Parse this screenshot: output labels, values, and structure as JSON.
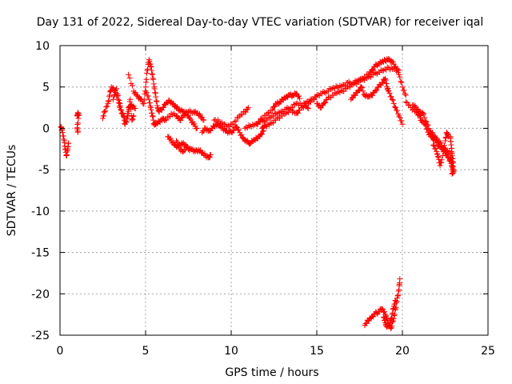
{
  "chart_data": {
    "type": "scatter",
    "title": "Day 131 of 2022, Sidereal Day-to-day VTEC variation (SDTVAR) for receiver iqal",
    "xlabel": "GPS time / hours",
    "ylabel": "SDTVAR / TECUs",
    "xlim": [
      0,
      25
    ],
    "ylim": [
      -25,
      10
    ],
    "xticks": [
      0,
      5,
      10,
      15,
      20,
      25
    ],
    "yticks": [
      -25,
      -20,
      -15,
      -10,
      -5,
      0,
      5,
      10
    ],
    "grid": true,
    "marker": "+",
    "color": "#ff0000",
    "segments": [
      [
        [
          0.05,
          0.2
        ],
        [
          0.15,
          -0.5
        ],
        [
          0.25,
          -1.5
        ],
        [
          0.3,
          -2.5
        ],
        [
          0.38,
          -3.3
        ],
        [
          0.45,
          -2.5
        ],
        [
          0.5,
          -1.8
        ]
      ],
      [
        [
          1.0,
          1.5
        ],
        [
          1.05,
          1.8
        ],
        [
          1.1,
          1.6
        ],
        [
          1.0,
          0.0
        ],
        [
          1.05,
          -0.4
        ]
      ],
      [
        [
          2.5,
          1.2
        ],
        [
          2.6,
          2.0
        ],
        [
          2.8,
          3.0
        ],
        [
          2.9,
          4.0
        ],
        [
          3.0,
          5.0
        ],
        [
          3.2,
          4.5
        ],
        [
          3.4,
          3.5
        ],
        [
          3.5,
          2.5
        ],
        [
          3.7,
          1.5
        ],
        [
          3.8,
          0.5
        ],
        [
          4.0,
          1.8
        ],
        [
          4.1,
          3.5
        ],
        [
          4.2,
          1.0
        ],
        [
          4.3,
          1.5
        ]
      ],
      [
        [
          3.1,
          3.5
        ],
        [
          3.3,
          4.8
        ],
        [
          3.5,
          3.0
        ],
        [
          3.6,
          1.8
        ],
        [
          3.9,
          0.8
        ],
        [
          4.0,
          2.5
        ],
        [
          4.2,
          2.8
        ],
        [
          4.4,
          2.4
        ]
      ],
      [
        [
          4.0,
          6.5
        ],
        [
          4.3,
          4.5
        ],
        [
          4.5,
          4.0
        ],
        [
          4.7,
          3.5
        ],
        [
          4.9,
          3.0
        ],
        [
          5.0,
          5.0
        ],
        [
          5.1,
          7.0
        ],
        [
          5.2,
          8.3
        ],
        [
          5.3,
          7.5
        ],
        [
          5.4,
          6.5
        ],
        [
          5.5,
          5.0
        ],
        [
          5.6,
          3.8
        ],
        [
          5.7,
          2.5
        ],
        [
          5.8,
          2.0
        ],
        [
          6.0,
          2.5
        ],
        [
          6.2,
          3.0
        ],
        [
          6.4,
          3.3
        ],
        [
          6.6,
          3.0
        ],
        [
          6.8,
          2.5
        ],
        [
          7.0,
          2.2
        ],
        [
          7.2,
          2.0
        ],
        [
          7.4,
          1.8
        ],
        [
          7.6,
          1.2
        ],
        [
          7.8,
          0.5
        ],
        [
          8.0,
          0.0
        ]
      ],
      [
        [
          5.0,
          4.5
        ],
        [
          5.2,
          3.5
        ],
        [
          5.3,
          2.5
        ],
        [
          5.4,
          1.5
        ],
        [
          5.5,
          0.5
        ],
        [
          5.6,
          0.5
        ],
        [
          5.8,
          0.8
        ],
        [
          6.0,
          1.2
        ],
        [
          6.2,
          1.0
        ],
        [
          6.5,
          1.8
        ],
        [
          6.8,
          1.5
        ],
        [
          7.0,
          1.0
        ],
        [
          7.2,
          1.5
        ],
        [
          7.5,
          2.0
        ],
        [
          7.8,
          2.0
        ],
        [
          8.0,
          1.8
        ],
        [
          8.2,
          1.5
        ],
        [
          8.4,
          1.0
        ]
      ],
      [
        [
          6.3,
          -1.0
        ],
        [
          6.5,
          -1.5
        ],
        [
          6.7,
          -2.0
        ],
        [
          6.9,
          -2.2
        ],
        [
          7.1,
          -1.8
        ],
        [
          7.3,
          -2.0
        ],
        [
          7.5,
          -2.5
        ],
        [
          7.7,
          -2.5
        ],
        [
          7.9,
          -2.8
        ],
        [
          8.1,
          -2.6
        ],
        [
          8.3,
          -3.0
        ],
        [
          8.5,
          -3.3
        ],
        [
          8.7,
          -3.5
        ],
        [
          8.8,
          -3.2
        ]
      ],
      [
        [
          6.8,
          -1.5
        ],
        [
          7.0,
          -2.5
        ],
        [
          7.2,
          -2.8
        ],
        [
          7.4,
          -2.2
        ]
      ],
      [
        [
          8.3,
          -0.5
        ],
        [
          8.5,
          0.0
        ],
        [
          8.7,
          -0.3
        ],
        [
          8.9,
          0.0
        ],
        [
          9.1,
          0.5
        ],
        [
          9.3,
          0.3
        ],
        [
          9.5,
          0.0
        ],
        [
          9.7,
          -0.3
        ],
        [
          9.9,
          -0.5
        ],
        [
          10.1,
          -0.3
        ],
        [
          10.3,
          0.2
        ],
        [
          10.5,
          -0.5
        ],
        [
          10.7,
          -1.2
        ],
        [
          10.9,
          -1.6
        ],
        [
          11.1,
          -1.8
        ],
        [
          11.3,
          -1.5
        ],
        [
          11.5,
          -1.2
        ],
        [
          11.7,
          -0.8
        ],
        [
          11.9,
          -0.3
        ]
      ],
      [
        [
          9.0,
          1.0
        ],
        [
          9.3,
          0.8
        ],
        [
          9.6,
          0.5
        ],
        [
          9.9,
          0.2
        ],
        [
          10.2,
          0.8
        ],
        [
          10.5,
          1.5
        ],
        [
          10.8,
          2.0
        ],
        [
          11.0,
          2.5
        ]
      ],
      [
        [
          10.8,
          0.0
        ],
        [
          11.1,
          0.3
        ],
        [
          11.4,
          0.5
        ],
        [
          11.7,
          0.8
        ],
        [
          12.0,
          1.0
        ],
        [
          12.3,
          1.3
        ],
        [
          12.6,
          1.8
        ],
        [
          12.9,
          2.0
        ],
        [
          13.2,
          2.3
        ],
        [
          13.5,
          2.5
        ],
        [
          13.8,
          3.0
        ],
        [
          14.1,
          2.8
        ],
        [
          14.4,
          3.2
        ],
        [
          14.7,
          3.5
        ]
      ],
      [
        [
          11.8,
          0.0
        ],
        [
          12.0,
          0.3
        ],
        [
          12.3,
          0.6
        ],
        [
          12.6,
          1.0
        ],
        [
          12.9,
          1.5
        ],
        [
          13.2,
          1.8
        ],
        [
          13.5,
          2.2
        ],
        [
          13.8,
          1.8
        ],
        [
          14.0,
          2.2
        ],
        [
          14.3,
          2.8
        ],
        [
          14.5,
          2.4
        ]
      ],
      [
        [
          11.5,
          0.5
        ],
        [
          11.8,
          1.2
        ],
        [
          12.1,
          1.8
        ],
        [
          12.4,
          2.2
        ],
        [
          12.6,
          3.0
        ],
        [
          12.8,
          3.0
        ],
        [
          13.0,
          3.5
        ],
        [
          13.2,
          3.8
        ],
        [
          13.4,
          4.0
        ],
        [
          13.6,
          4.0
        ],
        [
          13.8,
          4.2
        ],
        [
          14.0,
          3.6
        ]
      ],
      [
        [
          14.5,
          3.0
        ],
        [
          14.8,
          3.5
        ],
        [
          15.0,
          4.0
        ],
        [
          15.3,
          4.2
        ],
        [
          15.6,
          4.5
        ],
        [
          15.9,
          4.8
        ],
        [
          16.2,
          5.0
        ],
        [
          16.5,
          5.2
        ],
        [
          16.8,
          5.5
        ],
        [
          17.1,
          5.4
        ],
        [
          17.4,
          5.8
        ],
        [
          17.7,
          5.9
        ],
        [
          18.0,
          6.2
        ],
        [
          18.3,
          6.5
        ],
        [
          18.6,
          6.8
        ],
        [
          18.9,
          7.0
        ],
        [
          19.2,
          7.3
        ],
        [
          19.5,
          7.2
        ],
        [
          19.8,
          7.0
        ]
      ],
      [
        [
          15.0,
          3.0
        ],
        [
          15.2,
          2.5
        ],
        [
          15.4,
          3.0
        ],
        [
          15.6,
          3.5
        ],
        [
          15.9,
          4.0
        ],
        [
          16.2,
          4.3
        ],
        [
          16.5,
          4.5
        ],
        [
          16.8,
          5.0
        ],
        [
          17.1,
          5.3
        ],
        [
          17.4,
          5.6
        ],
        [
          17.7,
          6.0
        ],
        [
          18.0,
          6.5
        ],
        [
          18.2,
          7.0
        ],
        [
          18.4,
          7.5
        ],
        [
          18.6,
          7.8
        ],
        [
          18.8,
          8.0
        ],
        [
          19.0,
          8.2
        ],
        [
          19.2,
          8.4
        ],
        [
          19.4,
          8.0
        ],
        [
          19.6,
          7.5
        ],
        [
          19.8,
          6.5
        ],
        [
          20.0,
          5.0
        ],
        [
          20.2,
          4.0
        ]
      ],
      [
        [
          17.0,
          3.5
        ],
        [
          17.2,
          4.0
        ],
        [
          17.4,
          4.5
        ],
        [
          17.6,
          5.0
        ],
        [
          17.8,
          4.0
        ],
        [
          18.0,
          3.8
        ],
        [
          18.2,
          4.0
        ],
        [
          18.4,
          4.5
        ],
        [
          18.6,
          5.0
        ],
        [
          18.8,
          5.5
        ],
        [
          19.0,
          6.0
        ],
        [
          19.1,
          5.0
        ],
        [
          19.2,
          4.5
        ],
        [
          19.4,
          3.5
        ],
        [
          19.6,
          2.5
        ],
        [
          19.8,
          1.5
        ],
        [
          20.0,
          0.5
        ]
      ],
      [
        [
          20.2,
          3.2
        ],
        [
          20.5,
          2.5
        ],
        [
          20.8,
          2.0
        ],
        [
          21.0,
          1.5
        ],
        [
          21.1,
          1.0
        ],
        [
          21.3,
          0.5
        ],
        [
          21.5,
          -0.5
        ],
        [
          21.7,
          -1.0
        ],
        [
          21.9,
          -1.5
        ],
        [
          22.1,
          -2.0
        ],
        [
          22.3,
          -2.5
        ],
        [
          22.5,
          -3.0
        ],
        [
          22.7,
          -3.5
        ],
        [
          22.8,
          -4.0
        ],
        [
          22.9,
          -4.5
        ],
        [
          22.95,
          -5.0
        ]
      ],
      [
        [
          20.6,
          2.8
        ],
        [
          20.8,
          2.5
        ],
        [
          21.0,
          2.0
        ],
        [
          21.2,
          1.8
        ],
        [
          21.4,
          0.8
        ],
        [
          21.6,
          -0.3
        ],
        [
          21.8,
          -0.8
        ],
        [
          22.0,
          -1.2
        ],
        [
          22.2,
          -1.8
        ],
        [
          22.4,
          -2.3
        ],
        [
          22.6,
          -2.8
        ],
        [
          22.8,
          -3.0
        ],
        [
          22.9,
          -4.2
        ]
      ],
      [
        [
          21.8,
          -2.0
        ],
        [
          22.0,
          -2.8
        ],
        [
          22.1,
          -3.5
        ],
        [
          22.2,
          -4.5
        ],
        [
          22.3,
          -3.8
        ],
        [
          22.5,
          -1.5
        ],
        [
          22.6,
          -0.5
        ],
        [
          22.7,
          -1.0
        ]
      ],
      [
        [
          22.8,
          -1.0
        ],
        [
          22.85,
          -2.0
        ],
        [
          22.9,
          -3.0
        ],
        [
          22.95,
          -4.0
        ],
        [
          23.0,
          -5.2
        ],
        [
          22.9,
          -5.5
        ]
      ],
      [
        [
          17.8,
          -23.8
        ],
        [
          18.0,
          -23.2
        ],
        [
          18.2,
          -22.8
        ],
        [
          18.4,
          -22.4
        ],
        [
          18.6,
          -22.2
        ],
        [
          18.8,
          -21.8
        ],
        [
          19.0,
          -22.5
        ],
        [
          19.1,
          -23.0
        ],
        [
          19.2,
          -23.8
        ],
        [
          19.35,
          -24.1
        ],
        [
          19.5,
          -23.0
        ],
        [
          19.6,
          -21.8
        ],
        [
          19.7,
          -20.5
        ],
        [
          19.8,
          -19.5
        ],
        [
          19.85,
          -18.2
        ]
      ],
      [
        [
          18.9,
          -22.8
        ],
        [
          19.0,
          -23.5
        ],
        [
          19.1,
          -24.0
        ],
        [
          19.3,
          -23.5
        ],
        [
          19.4,
          -22.5
        ],
        [
          19.5,
          -21.5
        ],
        [
          19.6,
          -20.8
        ]
      ]
    ]
  }
}
